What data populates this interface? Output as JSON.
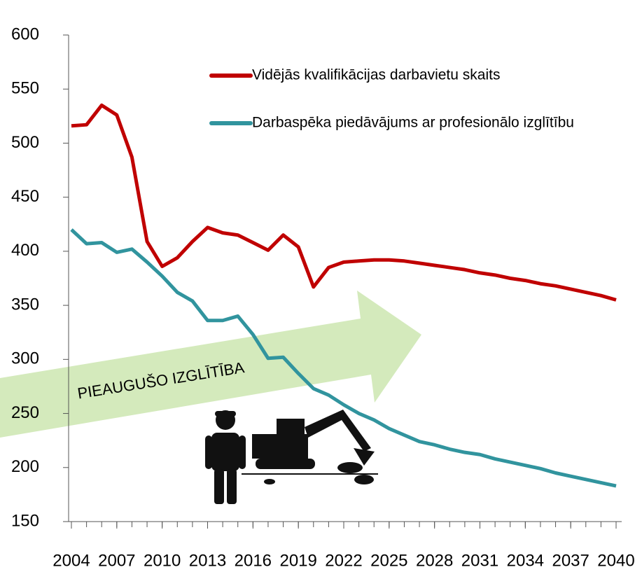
{
  "chart_data": {
    "type": "line",
    "annotation": "PIEAUGUŠO IZGLĪTĪBA",
    "x": [
      2004,
      2005,
      2006,
      2007,
      2008,
      2009,
      2010,
      2011,
      2012,
      2013,
      2014,
      2015,
      2016,
      2017,
      2018,
      2019,
      2020,
      2021,
      2022,
      2023,
      2024,
      2025,
      2026,
      2027,
      2028,
      2029,
      2030,
      2031,
      2032,
      2033,
      2034,
      2035,
      2036,
      2037,
      2038,
      2039,
      2040
    ],
    "series": [
      {
        "name": "Vidējās kvalifikācijas darbavietu skaits",
        "color": "#c00000",
        "values": [
          516,
          517,
          535,
          526,
          487,
          409,
          386,
          394,
          409,
          422,
          417,
          415,
          408,
          401,
          415,
          404,
          367,
          385,
          390,
          391,
          392,
          392,
          391,
          389,
          387,
          385,
          383,
          380,
          378,
          375,
          373,
          370,
          368,
          365,
          362,
          359,
          355
        ]
      },
      {
        "name": "Darbaspēka piedāvājums ar profesionālo izglītību",
        "color": "#31949e",
        "values": [
          420,
          407,
          408,
          399,
          402,
          390,
          377,
          362,
          354,
          336,
          336,
          340,
          323,
          301,
          302,
          287,
          273,
          267,
          258,
          250,
          244,
          236,
          230,
          224,
          221,
          217,
          214,
          212,
          208,
          205,
          202,
          199,
          195,
          192,
          189,
          186,
          183
        ]
      }
    ],
    "xlim": [
      2004,
      2040
    ],
    "xticks": [
      2004,
      2007,
      2010,
      2013,
      2016,
      2019,
      2022,
      2025,
      2028,
      2031,
      2034,
      2037,
      2040
    ],
    "ylim": [
      150,
      600
    ],
    "yticks": [
      150,
      200,
      250,
      300,
      350,
      400,
      450,
      500,
      550,
      600
    ],
    "grid": false
  }
}
